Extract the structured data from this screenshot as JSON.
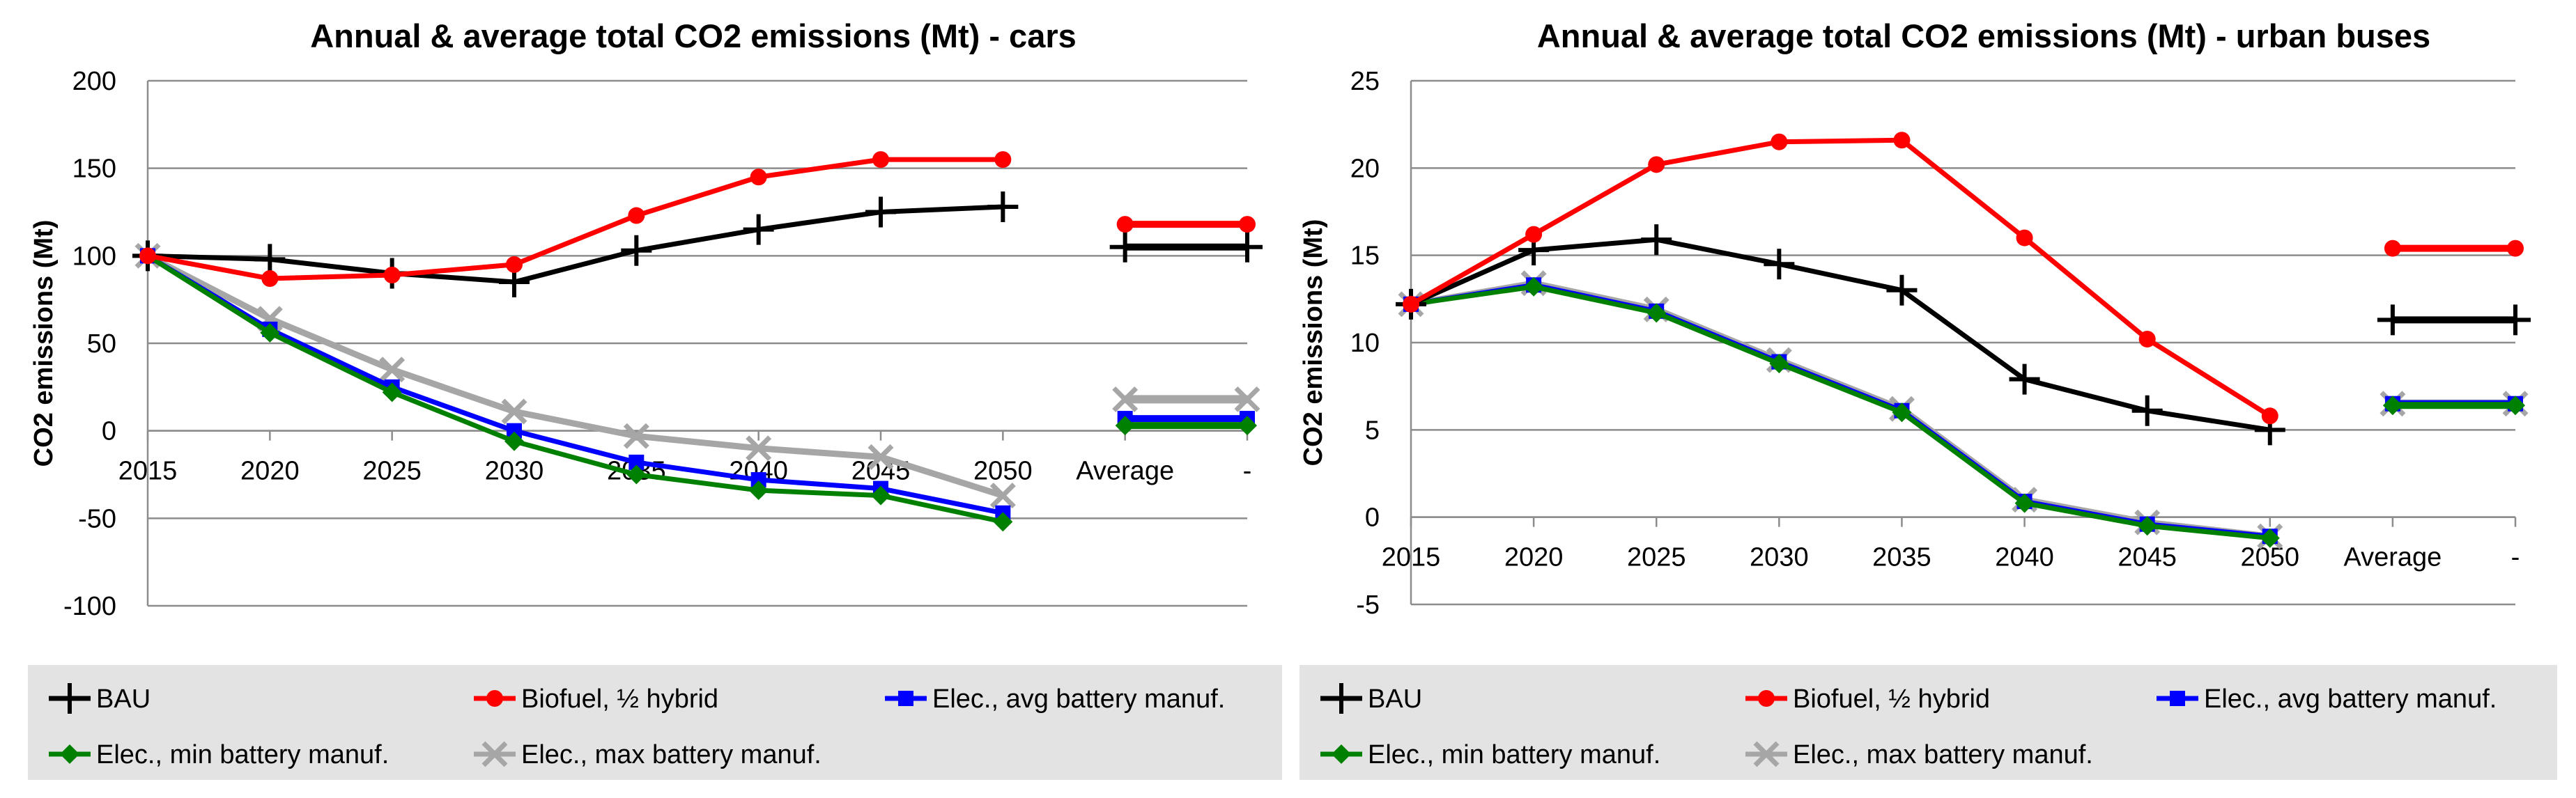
{
  "chart_data": [
    {
      "type": "line",
      "title": "Annual & average total CO2 emissions (Mt) - cars",
      "ylabel": "CO2 emissions (Mt)",
      "xlabel": "",
      "ylim": [
        -100,
        200
      ],
      "ytick_step": 50,
      "grid": true,
      "categories": [
        "2015",
        "2020",
        "2025",
        "2030",
        "2035",
        "2040",
        "2045",
        "2050",
        "Average",
        "-"
      ],
      "series": [
        {
          "name": "BAU",
          "color": "#000000",
          "marker": "plus",
          "values": [
            100,
            98,
            90,
            85,
            103,
            115,
            125,
            128,
            105,
            105
          ]
        },
        {
          "name": "Biofuel, ½ hybrid",
          "color": "#ff0000",
          "marker": "circle",
          "values": [
            100,
            87,
            89,
            95,
            123,
            145,
            155,
            155,
            118,
            118
          ]
        },
        {
          "name": "Elec., avg battery manuf.",
          "color": "#0000ff",
          "marker": "square",
          "values": [
            100,
            58,
            25,
            0,
            -18,
            -28,
            -33,
            -47,
            7,
            7
          ]
        },
        {
          "name": "Elec., min battery manuf.",
          "color": "#008000",
          "marker": "diamond",
          "values": [
            100,
            56,
            22,
            -6,
            -25,
            -34,
            -37,
            -52,
            3,
            3
          ]
        },
        {
          "name": "Elec., max battery manuf.",
          "color": "#a6a6a6",
          "marker": "cross",
          "values": [
            100,
            64,
            35,
            11,
            -3,
            -10,
            -15,
            -37,
            18,
            18
          ]
        }
      ],
      "legend": [
        "BAU",
        "Biofuel, ½ hybrid",
        "Elec., avg battery manuf.",
        "Elec., min battery manuf.",
        "Elec., max battery manuf."
      ],
      "legend_position": "bottom"
    },
    {
      "type": "line",
      "title": "Annual & average total CO2 emissions (Mt) - urban buses",
      "ylabel": "CO2 emissions (Mt)",
      "xlabel": "",
      "ylim": [
        -5,
        25
      ],
      "ytick_step": 5,
      "grid": true,
      "categories": [
        "2015",
        "2020",
        "2025",
        "2030",
        "2035",
        "2040",
        "2045",
        "2050",
        "Average",
        "-"
      ],
      "series": [
        {
          "name": "BAU",
          "color": "#000000",
          "marker": "plus",
          "values": [
            12.2,
            15.3,
            15.9,
            14.5,
            13.0,
            7.9,
            6.1,
            5.0,
            11.3,
            11.3
          ]
        },
        {
          "name": "Biofuel, ½ hybrid",
          "color": "#ff0000",
          "marker": "circle",
          "values": [
            12.2,
            16.2,
            20.2,
            21.5,
            21.6,
            16.0,
            10.2,
            5.8,
            15.4,
            15.4
          ]
        },
        {
          "name": "Elec., avg battery manuf.",
          "color": "#0000ff",
          "marker": "square",
          "values": [
            12.2,
            13.3,
            11.8,
            8.9,
            6.1,
            0.9,
            -0.4,
            -1.1,
            6.5,
            6.5
          ]
        },
        {
          "name": "Elec., min battery manuf.",
          "color": "#008000",
          "marker": "diamond",
          "values": [
            12.2,
            13.2,
            11.7,
            8.8,
            6.0,
            0.8,
            -0.5,
            -1.2,
            6.4,
            6.4
          ]
        },
        {
          "name": "Elec., max battery manuf.",
          "color": "#a6a6a6",
          "marker": "cross",
          "values": [
            12.2,
            13.4,
            11.9,
            9.0,
            6.2,
            1.0,
            -0.3,
            -1.1,
            6.5,
            6.5
          ]
        }
      ],
      "legend": [
        "BAU",
        "Biofuel, ½ hybrid",
        "Elec., avg battery manuf.",
        "Elec., min battery manuf.",
        "Elec., max battery manuf."
      ],
      "legend_position": "bottom"
    }
  ]
}
